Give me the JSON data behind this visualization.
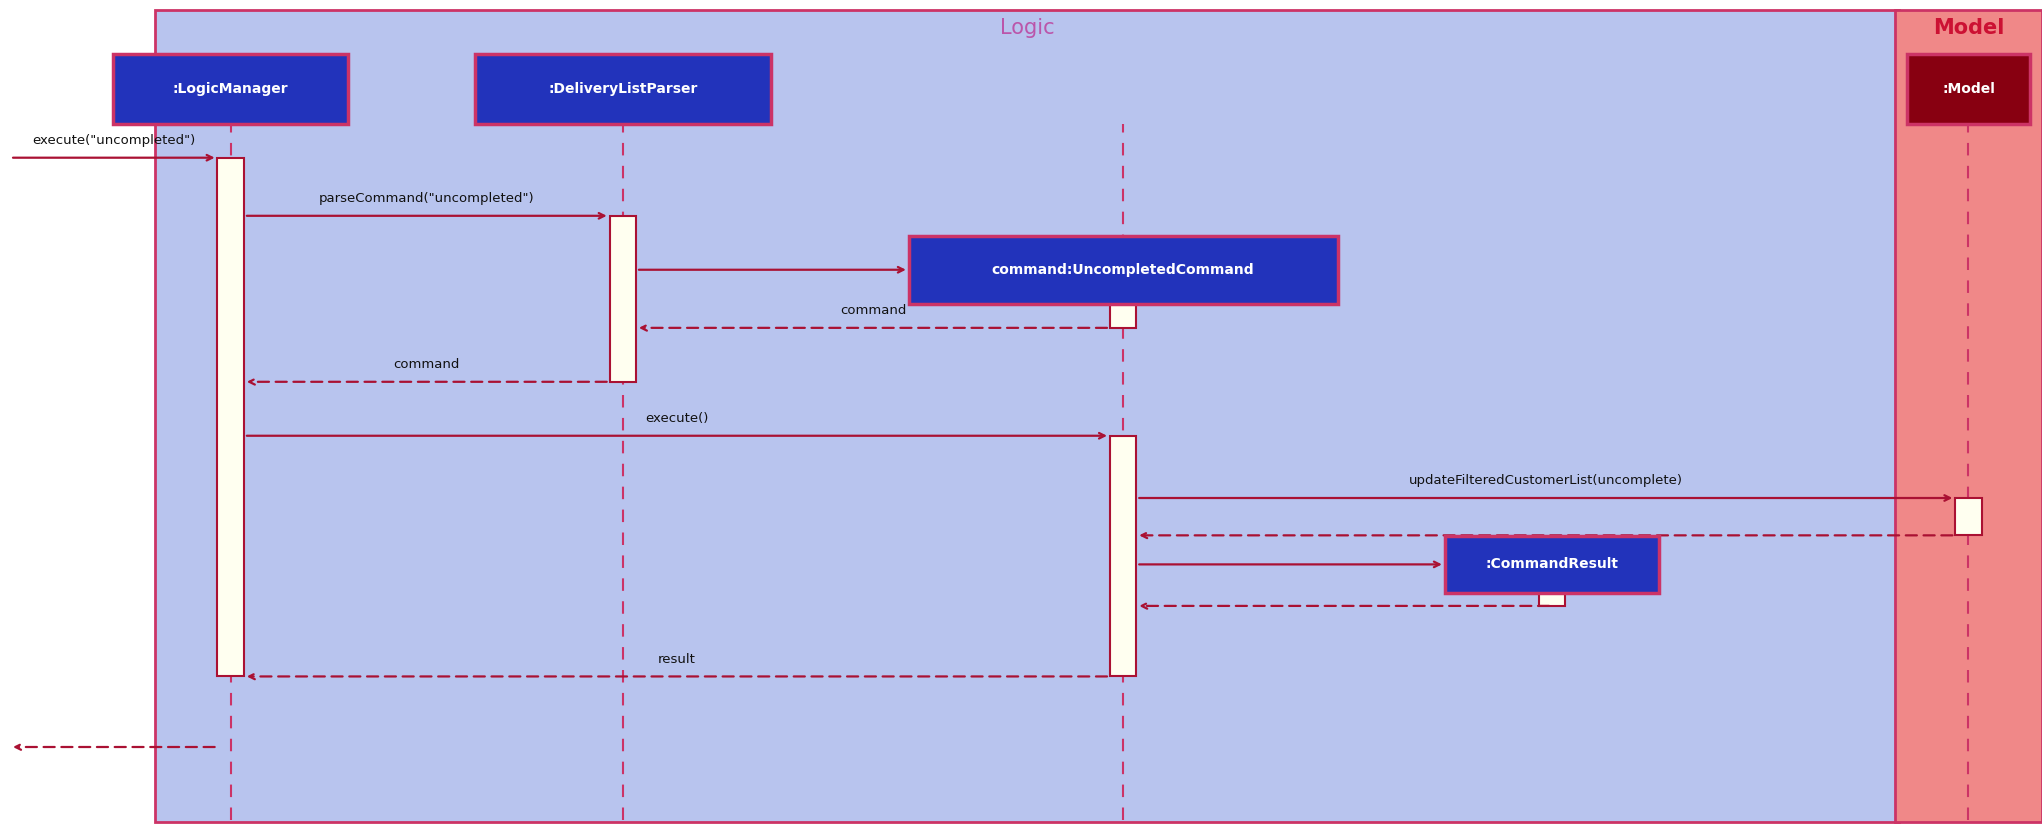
{
  "fig_width": 20.42,
  "fig_height": 8.3,
  "dpi": 100,
  "bg_color": "#ffffff",
  "logic_bg": "#b8c4ee",
  "logic_border": "#cc3366",
  "logic_label_color": "#bb55aa",
  "model_bg": "#f08888",
  "model_border": "#cc3366",
  "actor_box_blue_bg": "#2233bb",
  "actor_box_blue_border": "#cc3366",
  "actor_box_white_text": "#ffffff",
  "actor_box_dark_red_bg": "#880011",
  "lifeline_color": "#cc3366",
  "arrow_color": "#aa1133",
  "activation_color": "#fffff0",
  "activation_border": "#aa1133",
  "title_logic": "Logic",
  "title_model": "Model",
  "command_result_label": ":CommandResult"
}
